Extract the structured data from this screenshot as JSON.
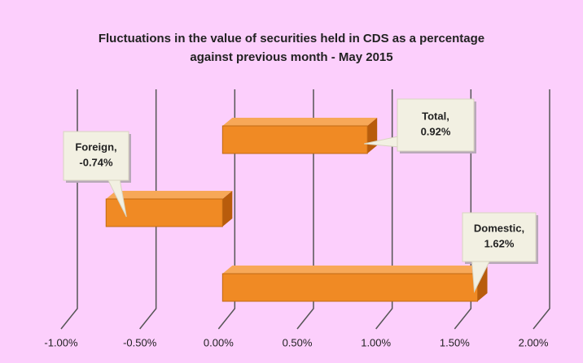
{
  "chart_data": {
    "type": "bar",
    "orientation": "horizontal",
    "title": "Fluctuations in the value of securities held in CDS as a percentage against previous month - May 2015",
    "categories": [
      "Total",
      "Foreign",
      "Domestic"
    ],
    "values": [
      0.92,
      -0.74,
      1.62
    ],
    "value_labels": [
      "Total, 0.92%",
      "Foreign, -0.74%",
      "Domestic, 1.62%"
    ],
    "color": "#f08a24",
    "xlim": [
      -1,
      2
    ],
    "xticks": [
      {
        "value": -1,
        "label": "-1.00%"
      },
      {
        "value": -0.5,
        "label": "-0.50%"
      },
      {
        "value": 0,
        "label": "0.00%"
      },
      {
        "value": 0.5,
        "label": "0.50%"
      },
      {
        "value": 1,
        "label": "1.00%"
      },
      {
        "value": 1.5,
        "label": "1.50%"
      },
      {
        "value": 2,
        "label": "2.00%"
      }
    ],
    "grid": true
  }
}
